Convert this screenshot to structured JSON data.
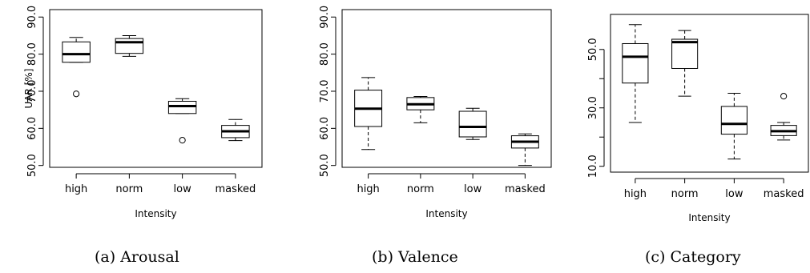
{
  "chart_data": [
    {
      "type": "box",
      "caption": "(a) Arousal",
      "xlabel": "Intensity",
      "ylabel": "UAR [%]",
      "categories": [
        "high",
        "norm",
        "low",
        "masked"
      ],
      "ylim": [
        49.5,
        92
      ],
      "yticks": [
        50.0,
        60.0,
        70.0,
        80.0,
        90.0
      ],
      "ytick_labels": [
        "50.0",
        "60.0",
        "70.0",
        "80.0",
        "90.0"
      ],
      "boxes": [
        {
          "whisker_low": 77.8,
          "q1": 77.8,
          "median": 80.0,
          "q3": 83.3,
          "whisker_high": 84.5,
          "outliers": [
            69.3
          ]
        },
        {
          "whisker_low": 79.4,
          "q1": 80.2,
          "median": 83.2,
          "q3": 84.2,
          "whisker_high": 85.0,
          "outliers": []
        },
        {
          "whisker_low": 64.0,
          "q1": 64.0,
          "median": 66.0,
          "q3": 67.3,
          "whisker_high": 68.0,
          "outliers": [
            56.8
          ]
        },
        {
          "whisker_low": 56.7,
          "q1": 57.5,
          "median": 59.2,
          "q3": 60.8,
          "whisker_high": 62.4,
          "outliers": []
        }
      ]
    },
    {
      "type": "box",
      "caption": "(b) Valence",
      "xlabel": "Intensity",
      "ylabel": "",
      "categories": [
        "high",
        "norm",
        "low",
        "masked"
      ],
      "ylim": [
        49.5,
        92
      ],
      "yticks": [
        50.0,
        60.0,
        70.0,
        80.0,
        90.0
      ],
      "ytick_labels": [
        "50.0",
        "60.0",
        "70.0",
        "80.0",
        "90.0"
      ],
      "boxes": [
        {
          "whisker_low": 54.3,
          "q1": 60.5,
          "median": 65.3,
          "q3": 70.3,
          "whisker_high": 73.7,
          "outliers": []
        },
        {
          "whisker_low": 61.5,
          "q1": 65.0,
          "median": 66.5,
          "q3": 68.3,
          "whisker_high": 68.6,
          "outliers": []
        },
        {
          "whisker_low": 57.0,
          "q1": 57.7,
          "median": 60.4,
          "q3": 64.6,
          "whisker_high": 65.4,
          "outliers": []
        },
        {
          "whisker_low": 50.0,
          "q1": 54.7,
          "median": 56.4,
          "q3": 58.0,
          "whisker_high": 58.5,
          "outliers": []
        }
      ]
    },
    {
      "type": "box",
      "caption": "(c) Category",
      "xlabel": "Intensity",
      "ylabel": "",
      "categories": [
        "high",
        "norm",
        "low",
        "masked"
      ],
      "ylim": [
        8,
        62
      ],
      "yticks": [
        10.0,
        30.0,
        50.0
      ],
      "ytick_labels": [
        "10.0",
        "30.0",
        "50.0"
      ],
      "minor_yticks": [
        20.0,
        40.0
      ],
      "boxes": [
        {
          "whisker_low": 25.0,
          "q1": 38.5,
          "median": 47.5,
          "q3": 52.0,
          "whisker_high": 58.5,
          "outliers": []
        },
        {
          "whisker_low": 34.0,
          "q1": 43.5,
          "median": 52.5,
          "q3": 53.5,
          "whisker_high": 56.5,
          "outliers": []
        },
        {
          "whisker_low": 12.5,
          "q1": 21.0,
          "median": 24.5,
          "q3": 30.5,
          "whisker_high": 35.0,
          "outliers": []
        },
        {
          "whisker_low": 19.0,
          "q1": 20.5,
          "median": 22.0,
          "q3": 24.0,
          "whisker_high": 25.0,
          "outliers": [
            34.0
          ]
        }
      ]
    }
  ]
}
